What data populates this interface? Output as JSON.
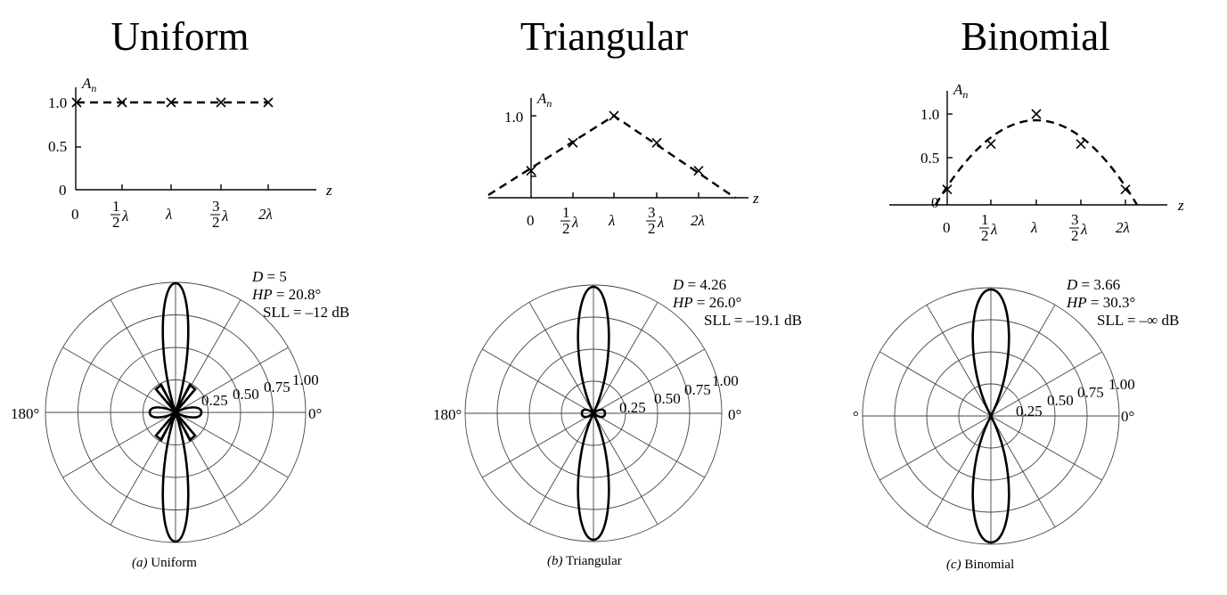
{
  "panels": [
    {
      "id": "uniform",
      "heading": "Uniform",
      "caption_letter": "(a)",
      "caption_text": " Uniform",
      "axis_label": "A",
      "axis_sub": "n",
      "z_label": "z",
      "y_ticks": [
        "1.0",
        "0.5",
        "0"
      ],
      "x_ticks": [
        "0",
        "λ",
        "2λ"
      ],
      "half_lambda": "λ",
      "three_half_lambda": "λ",
      "amplitudes": [
        1.0,
        1.0,
        1.0,
        1.0,
        1.0
      ],
      "D_label": "D",
      "D_value": " = 5",
      "HP_label": "HP",
      "HP_value": " = 20.8°",
      "SLL_text": "SLL = –12 dB",
      "ring_labels": [
        "0.25",
        "0.50",
        "0.75",
        "1.00"
      ],
      "angle_left": "180°",
      "angle_right": "0°"
    },
    {
      "id": "triangular",
      "heading": "Triangular",
      "caption_letter": "(b)",
      "caption_text": " Triangular",
      "axis_label": "A",
      "axis_sub": "n",
      "z_label": "z",
      "y_ticks": [
        "1.0"
      ],
      "x_ticks": [
        "0",
        "λ",
        "2λ"
      ],
      "half_lambda": "λ",
      "three_half_lambda": "λ",
      "amplitudes": [
        0.33,
        0.67,
        1.0,
        0.67,
        0.33
      ],
      "D_label": "D",
      "D_value": " = 4.26",
      "HP_label": "HP",
      "HP_value": " = 26.0°",
      "SLL_text": "SLL = –19.1 dB",
      "ring_labels": [
        "0.25",
        "0.50",
        "0.75",
        "1.00"
      ],
      "angle_left": "180°",
      "angle_right": "0°"
    },
    {
      "id": "binomial",
      "heading": "Binomial",
      "caption_letter": "(c)",
      "caption_text": " Binomial",
      "axis_label": "A",
      "axis_sub": "n",
      "z_label": "z",
      "y_ticks": [
        "1.0",
        "0.5",
        "0"
      ],
      "x_ticks": [
        "0",
        "λ",
        "2λ"
      ],
      "half_lambda": "λ",
      "three_half_lambda": "λ",
      "amplitudes": [
        0.17,
        0.67,
        1.0,
        0.67,
        0.17
      ],
      "D_label": "D",
      "D_value": " = 3.66",
      "HP_label": "HP",
      "HP_value": " = 30.3°",
      "SLL_text": "SLL = –∞ dB",
      "ring_labels": [
        "0.25",
        "0.50",
        "0.75",
        "1.00"
      ],
      "angle_left": "°",
      "angle_right": "0°"
    }
  ],
  "fraction_labels": {
    "one": "1",
    "two": "2",
    "three": "3"
  }
}
